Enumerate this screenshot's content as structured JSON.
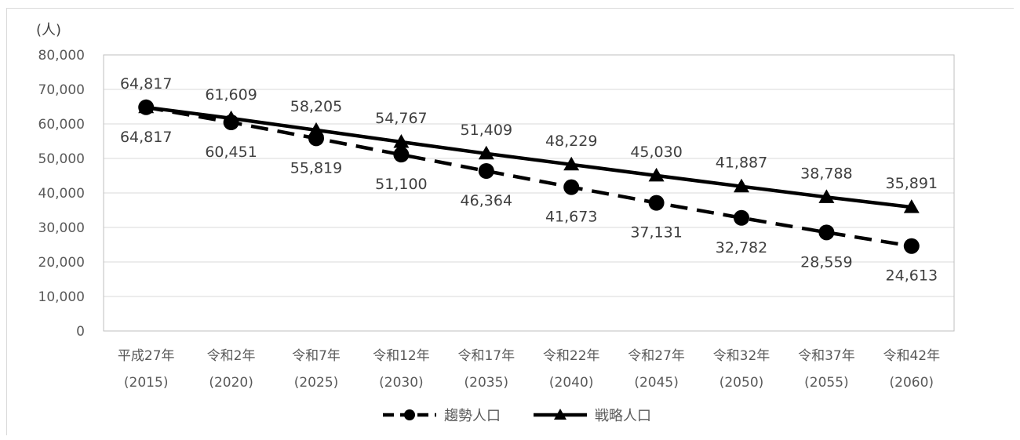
{
  "chart_data": {
    "type": "line",
    "title": "",
    "ylabel": "(人)",
    "ylim": [
      0,
      80000
    ],
    "yticks": [
      "0",
      "10,000",
      "20,000",
      "30,000",
      "40,000",
      "50,000",
      "60,000",
      "70,000",
      "80,000"
    ],
    "categories": [
      {
        "era": "平成27年",
        "year": "(2015)"
      },
      {
        "era": "令和2年",
        "year": "(2020)"
      },
      {
        "era": "令和7年",
        "year": "(2025)"
      },
      {
        "era": "令和12年",
        "year": "(2030)"
      },
      {
        "era": "令和17年",
        "year": "(2035)"
      },
      {
        "era": "令和22年",
        "year": "(2040)"
      },
      {
        "era": "令和27年",
        "year": "(2045)"
      },
      {
        "era": "令和32年",
        "year": "(2050)"
      },
      {
        "era": "令和37年",
        "year": "(2055)"
      },
      {
        "era": "令和42年",
        "year": "(2060)"
      }
    ],
    "series": [
      {
        "name": "趨勢人口",
        "style": "dashed",
        "marker": "circle",
        "color": "#000000",
        "values": [
          64817,
          60451,
          55819,
          51100,
          46364,
          41673,
          37131,
          32782,
          28559,
          24613
        ],
        "labels": [
          "64,817",
          "60,451",
          "55,819",
          "51,100",
          "46,364",
          "41,673",
          "37,131",
          "32,782",
          "28,559",
          "24,613"
        ]
      },
      {
        "name": "戦略人口",
        "style": "solid",
        "marker": "triangle",
        "color": "#000000",
        "values": [
          64817,
          61609,
          58205,
          54767,
          51409,
          48229,
          45030,
          41887,
          38788,
          35891
        ],
        "labels": [
          "64,817",
          "61,609",
          "58,205",
          "54,767",
          "51,409",
          "48,229",
          "45,030",
          "41,887",
          "38,788",
          "35,891"
        ]
      }
    ],
    "grid": true,
    "legend": "bottom-center"
  }
}
